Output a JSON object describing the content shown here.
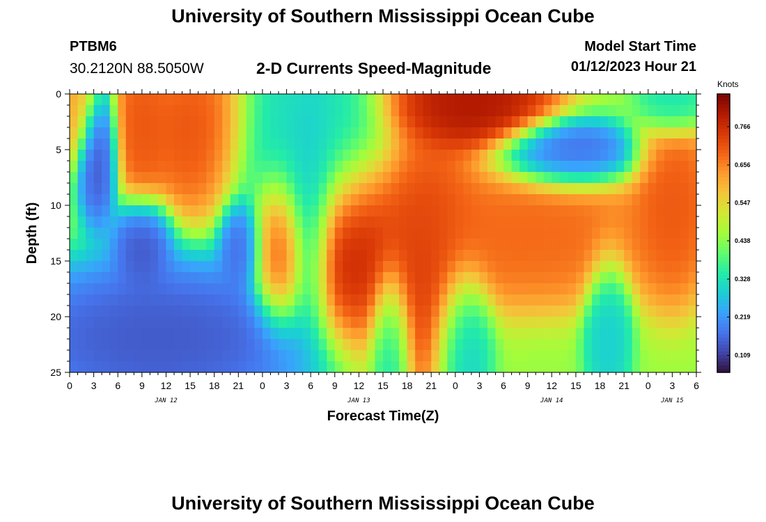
{
  "header": {
    "title": "University of Southern Mississippi Ocean Cube",
    "station": "PTBM6",
    "coordinates": "30.2120N  88.5050W",
    "subtitle": "2-D Currents Speed-Magnitude",
    "model_start_label": "Model Start Time",
    "model_start_value": "01/12/2023 Hour 21"
  },
  "footer": {
    "title": "University of Southern Mississippi Ocean Cube"
  },
  "chart_data": {
    "type": "heatmap",
    "title": "2-D Currents Speed-Magnitude",
    "xlabel": "Forecast Time(Z)",
    "ylabel": "Depth (ft)",
    "x_range_hours": [
      0,
      78
    ],
    "y_range": [
      0,
      25
    ],
    "y_ticks": [
      0,
      5,
      10,
      15,
      20,
      25
    ],
    "x_tick_labels": [
      "0",
      "3",
      "6",
      "9",
      "12",
      "15",
      "18",
      "21",
      "0",
      "3",
      "6",
      "9",
      "12",
      "15",
      "18",
      "21",
      "0",
      "3",
      "6",
      "9",
      "12",
      "15",
      "18",
      "21",
      "0",
      "3",
      "6"
    ],
    "date_labels": [
      {
        "label": "JAN 12",
        "hour": 12
      },
      {
        "label": "JAN 13",
        "hour": 36
      },
      {
        "label": "JAN 14",
        "hour": 60
      },
      {
        "label": "JAN 15",
        "hour": 75
      }
    ],
    "colorbar": {
      "unit": "Knots",
      "ticks": [
        "0.109",
        "0.219",
        "0.328",
        "0.438",
        "0.547",
        "0.656",
        "0.766"
      ],
      "tick_values": [
        0.109,
        0.219,
        0.328,
        0.438,
        0.547,
        0.656,
        0.766
      ],
      "range": [
        0.06,
        0.86
      ],
      "colors": [
        "#30123b",
        "#4145ab",
        "#4675ed",
        "#39a2fc",
        "#1bcfd4",
        "#24eca6",
        "#61fc6c",
        "#a4fc3b",
        "#d1e834",
        "#f3c63a",
        "#fe9b2d",
        "#f36315",
        "#d93806",
        "#b11901",
        "#7a0402"
      ]
    },
    "hot_spots": [
      {
        "t": 0.3,
        "d": 0.5,
        "w": 2.5,
        "h": 4,
        "v": 0.62
      },
      {
        "t": 3.5,
        "d": 5.5,
        "w": 1.8,
        "h": 4.5,
        "v": 0.12
      },
      {
        "t": 9,
        "d": 3,
        "w": 2.5,
        "h": 5,
        "v": 0.72
      },
      {
        "t": 16,
        "d": 3.5,
        "w": 4.5,
        "h": 5,
        "v": 0.73
      },
      {
        "t": 9,
        "d": 13.5,
        "w": 2.5,
        "h": 3,
        "v": 0.12
      },
      {
        "t": 21.5,
        "d": 13.5,
        "w": 2,
        "h": 3,
        "v": 0.14
      },
      {
        "t": 11,
        "d": 22,
        "w": 14,
        "h": 5,
        "v": 0.12
      },
      {
        "t": 29,
        "d": 5,
        "w": 7,
        "h": 6,
        "v": 0.3
      },
      {
        "t": 26,
        "d": 13.5,
        "w": 2.5,
        "h": 5,
        "v": 0.72
      },
      {
        "t": 30,
        "d": 11,
        "w": 2,
        "h": 8,
        "v": 0.26
      },
      {
        "t": 35,
        "d": 14,
        "w": 4.5,
        "h": 6,
        "v": 0.8
      },
      {
        "t": 40,
        "d": 22,
        "w": 1.8,
        "h": 5,
        "v": 0.28
      },
      {
        "t": 44,
        "d": 15,
        "w": 5,
        "h": 8,
        "v": 0.76
      },
      {
        "t": 49,
        "d": 22,
        "w": 2.5,
        "h": 5,
        "v": 0.26
      },
      {
        "t": 50,
        "d": 1,
        "w": 7,
        "h": 3,
        "v": 0.83
      },
      {
        "t": 57,
        "d": 12.5,
        "w": 12,
        "h": 4.5,
        "v": 0.7
      },
      {
        "t": 62,
        "d": 5.5,
        "w": 6,
        "h": 2.2,
        "v": 0.13
      },
      {
        "t": 67,
        "d": 21,
        "w": 2,
        "h": 5,
        "v": 0.28
      },
      {
        "t": 75,
        "d": 10,
        "w": 3.5,
        "h": 6,
        "v": 0.72
      },
      {
        "t": 75,
        "d": 1,
        "w": 3,
        "h": 2,
        "v": 0.3
      }
    ],
    "background_value": 0.45
  }
}
